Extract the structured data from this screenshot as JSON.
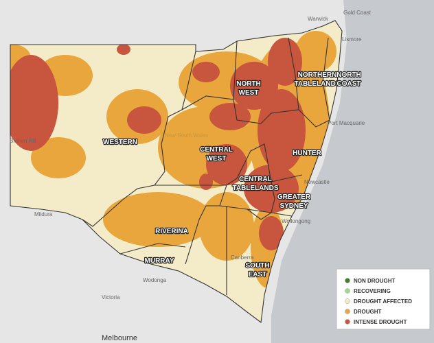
{
  "map": {
    "regions": [
      {
        "lines": [
          "NORTH",
          "WEST"
        ]
      },
      {
        "lines": [
          "NORTHERN",
          "TABLELANDS"
        ]
      },
      {
        "lines": [
          "NORTH",
          "COAST"
        ]
      },
      {
        "lines": [
          "WESTERN"
        ]
      },
      {
        "lines": [
          "CENTRAL",
          "WEST"
        ]
      },
      {
        "lines": [
          "HUNTER"
        ]
      },
      {
        "lines": [
          "CENTRAL",
          "TABLELANDS"
        ]
      },
      {
        "lines": [
          "GREATER",
          "SYDNEY"
        ]
      },
      {
        "lines": [
          "RIVERINA"
        ]
      },
      {
        "lines": [
          "MURRAY"
        ]
      },
      {
        "lines": [
          "SOUTH",
          "EAST"
        ]
      }
    ],
    "places": [
      "Gold Coast",
      "Warwick",
      "Lismore",
      "Port Macquarie",
      "Newcastle",
      "Wollongong",
      "Canberra",
      "Mildura",
      "Broken Hill",
      "Wodonga",
      "Victoria",
      "Melbourne",
      "New South Wales"
    ]
  },
  "legend": {
    "items": [
      {
        "label": "NON DROUGHT",
        "color": "#3f7d2a"
      },
      {
        "label": "RECOVERING",
        "color": "#9ed98a"
      },
      {
        "label": "DROUGHT AFFECTED",
        "color": "#f4ecc9"
      },
      {
        "label": "DROUGHT",
        "color": "#e8a63c"
      },
      {
        "label": "INTENSE DROUGHT",
        "color": "#c8553d"
      }
    ]
  }
}
